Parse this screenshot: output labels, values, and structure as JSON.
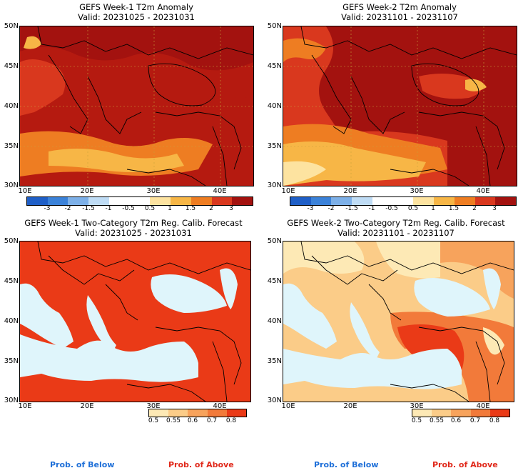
{
  "panels": [
    {
      "title": "GEFS Week-1 T2m Anomaly",
      "valid": "Valid: 20231025 - 20231031",
      "lat_labels": [
        "50N",
        "45N",
        "40N",
        "35N",
        "30N"
      ],
      "lon_labels": [
        "10E",
        "20E",
        "30E",
        "40E"
      ],
      "colorbar_labels": [
        "-3",
        "-2",
        "-1.5",
        "-1",
        "-0.5",
        "0.5",
        "1",
        "1.5",
        "2",
        "3"
      ]
    },
    {
      "title": "GEFS Week-2 T2m Anomaly",
      "valid": "Valid: 20231101 - 20231107",
      "lat_labels": [
        "50N",
        "45N",
        "40N",
        "35N",
        "30N"
      ],
      "lon_labels": [
        "10E",
        "20E",
        "30E",
        "40E"
      ],
      "colorbar_labels": [
        "-3",
        "-2",
        "-1.5",
        "-1",
        "-0.5",
        "0.5",
        "1",
        "1.5",
        "2",
        "3"
      ]
    },
    {
      "title": "GEFS Week-1 Two-Category T2m Reg. Calib. Forecast",
      "valid": "Valid: 20231025 - 20231031",
      "lat_labels": [
        "50N",
        "45N",
        "40N",
        "35N",
        "30N"
      ],
      "lon_labels": [
        "10E",
        "20E",
        "30E",
        "40E"
      ],
      "colorbar_labels": [
        "0.5",
        "0.55",
        "0.6",
        "0.7",
        "0.8"
      ]
    },
    {
      "title": "GEFS Week-2 Two-Category T2m Reg. Calib. Forecast",
      "valid": "Valid: 20231101 - 20231107",
      "lat_labels": [
        "50N",
        "45N",
        "40N",
        "35N",
        "30N"
      ],
      "lon_labels": [
        "10E",
        "20E",
        "30E",
        "40E"
      ],
      "colorbar_labels": [
        "0.5",
        "0.55",
        "0.6",
        "0.7",
        "0.8"
      ]
    }
  ],
  "footer": {
    "below_label": "Prob. of Below",
    "above_label": "Prob. of Above"
  },
  "colors": {
    "anomaly_scale": [
      "#1f5fc7",
      "#3b82d9",
      "#7db0e8",
      "#bfdcf5",
      "#ffffff",
      "#ffffff",
      "#fde3a0",
      "#f7b646",
      "#ee7d22",
      "#d9381e",
      "#a3120f"
    ],
    "prob_scale": [
      "#fde9b5",
      "#fbcc88",
      "#f7a35c",
      "#f27a3a",
      "#ea3a17"
    ],
    "water": "#dff5fb",
    "below_text": "#1e6fd8",
    "above_text": "#e0291b"
  }
}
